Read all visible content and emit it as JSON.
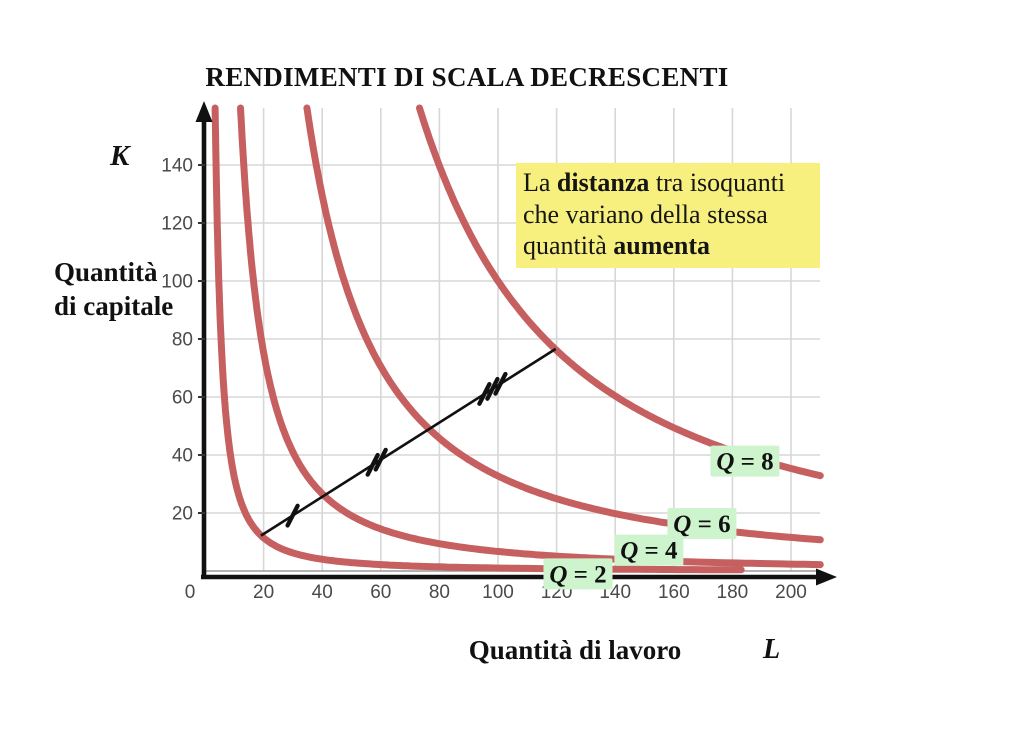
{
  "page": {
    "background": "#ffffff"
  },
  "title": "RENDIMENTI DI SCALA DECRESCENTI",
  "annotation": {
    "bg_color": "#f7f07e",
    "lines": [
      [
        {
          "t": "La ",
          "b": false
        },
        {
          "t": "distanza",
          "b": true
        },
        {
          "t": " tra isoquanti",
          "b": false
        }
      ],
      [
        {
          "t": "che variano della stessa",
          "b": false
        }
      ],
      [
        {
          "t": "quantità ",
          "b": false
        },
        {
          "t": "aumenta",
          "b": true
        }
      ]
    ]
  },
  "axes": {
    "y_symbol": "K",
    "y_name_lines": [
      "Quantità",
      "di capitale"
    ],
    "x_name": "Quantità di lavoro",
    "x_symbol": "L",
    "x_ticks": [
      0,
      20,
      40,
      60,
      80,
      100,
      120,
      140,
      160,
      180,
      200
    ],
    "y_ticks": [
      20,
      40,
      60,
      80,
      100,
      120,
      140
    ],
    "axis_color": "#111111",
    "grid_color": "#d7d7d7",
    "zero_line_color": "#999999",
    "tick_label_color": "#4a4a4a"
  },
  "chart_data": {
    "type": "line",
    "title": "RENDIMENTI DI SCALA DECRESCENTI",
    "xlabel": "Quantità di lavoro (L)",
    "ylabel": "Quantità di capitale (K)",
    "xlim": [
      0,
      216
    ],
    "ylim": [
      0,
      160
    ],
    "grid": true,
    "curve_color": "#c66060",
    "label_bg": "#cdf4cc",
    "curve_formula": "K = C^2.5 / L^1.5  (isoquants of a decreasing-returns Cobb-Douglas technology)",
    "isoquants": [
      {
        "label": "Q = 2",
        "q": 2,
        "C": 16,
        "l_end": 183,
        "label_at": {
          "l": 127.3,
          "k": -1.0
        }
      },
      {
        "label": "Q = 4",
        "q": 4,
        "C": 34,
        "l_end": 210,
        "label_at": {
          "l": 151.5,
          "k": 7.2
        }
      },
      {
        "label": "Q = 6",
        "q": 6,
        "C": 64,
        "l_end": 210,
        "label_at": {
          "l": 169.6,
          "k": 16.4
        }
      },
      {
        "label": "Q = 8",
        "q": 8,
        "C": 100,
        "l_end": 210,
        "label_at": {
          "l": 184.3,
          "k": 37.9
        }
      }
    ],
    "expansion_ray": {
      "from": {
        "l": 19.1,
        "k": 12.2
      },
      "to": {
        "l": 119.7,
        "k": 76.6
      },
      "crossings": [
        {
          "q": 2,
          "l": 19.1,
          "k": 12.2
        },
        {
          "q": 4,
          "l": 40.7,
          "k": 26.0
        },
        {
          "q": 6,
          "l": 76.5,
          "k": 49.0
        },
        {
          "q": 8,
          "l": 119.7,
          "k": 76.6
        }
      ],
      "segment_marks": [
        {
          "count": 1,
          "l": 29.9,
          "k": 19.1
        },
        {
          "count": 2,
          "l": 58.6,
          "k": 37.5
        },
        {
          "count": 3,
          "l": 98.1,
          "k": 62.8
        }
      ]
    }
  }
}
